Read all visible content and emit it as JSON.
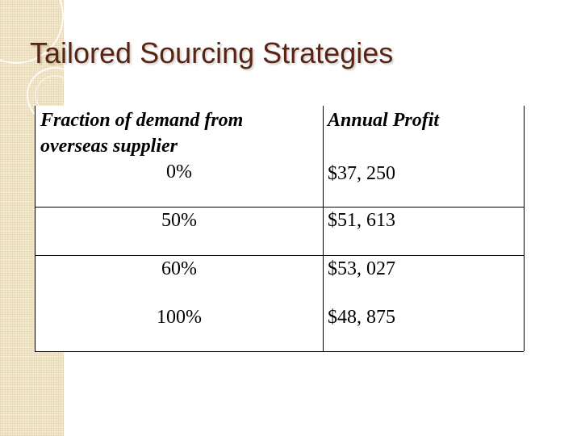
{
  "slide": {
    "title": "Tailored Sourcing Strategies"
  },
  "table": {
    "headers": {
      "fraction_line1": "Fraction of demand from",
      "fraction_line2": "overseas supplier",
      "profit": "Annual Profit"
    },
    "rows": [
      {
        "fraction": "0%",
        "profit": "$37, 250"
      },
      {
        "fraction": "50%",
        "profit": "$51, 613"
      },
      {
        "fraction": "60%",
        "profit": "$53, 027"
      },
      {
        "fraction": "100%",
        "profit": "$48, 875"
      }
    ]
  },
  "colors": {
    "title": "#5a2413",
    "side_strip": "#f3e9cf"
  }
}
